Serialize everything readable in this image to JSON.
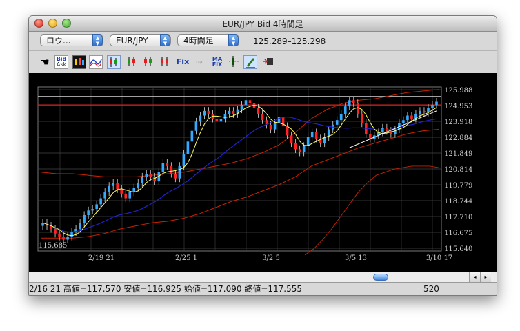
{
  "window": {
    "title": "EUR/JPY Bid 4時間足"
  },
  "toolbar": {
    "mode_select": "ロウ...",
    "pair_select": "EUR/JPY",
    "timeframe_select": "4時間足",
    "price_range": "125.289–125.298",
    "bid_ask_label_top": "Bid",
    "bid_ask_label_bottom": "Ask",
    "fix_label": "Fix",
    "ma_fix_label_top": "MA",
    "ma_fix_label_bottom": "FIX"
  },
  "chart_data": {
    "type": "candlestick",
    "pair": "EUR/JPY",
    "timeframe": "4時間足",
    "y_tick_labels": [
      "125.988",
      "124.953",
      "123.918",
      "122.884",
      "121.849",
      "120.814",
      "119.779",
      "118.744",
      "117.710",
      "116.675",
      "115.640"
    ],
    "ylim": [
      115.64,
      125.988
    ],
    "x_tick_labels": [
      "2/19 21",
      "2/25 1",
      "3/2 5",
      "3/5 13",
      "3/10 17"
    ],
    "low_label": "115.685",
    "horizontal_lines": [
      125.55,
      125.0
    ],
    "close_series": [
      117.3,
      117.1,
      116.9,
      116.6,
      116.4,
      116.2,
      116.4,
      116.7,
      116.9,
      117.3,
      117.8,
      118.1,
      118.2,
      118.5,
      118.9,
      119.3,
      119.7,
      119.9,
      119.5,
      119.2,
      118.9,
      119.3,
      119.6,
      119.9,
      120.3,
      120.5,
      120.3,
      120.0,
      120.6,
      121.2,
      121.0,
      120.5,
      120.2,
      121.0,
      121.8,
      122.6,
      123.3,
      123.9,
      124.3,
      124.6,
      124.4,
      124.1,
      123.9,
      124.1,
      124.4,
      124.6,
      124.4,
      124.7,
      125.0,
      125.3,
      125.1,
      124.8,
      124.4,
      124.0,
      123.7,
      123.4,
      123.8,
      124.2,
      123.6,
      123.0,
      122.5,
      122.1,
      121.9,
      122.3,
      122.9,
      123.2,
      122.8,
      122.5,
      122.9,
      123.4,
      123.7,
      124.0,
      124.4,
      124.9,
      125.3,
      125.1,
      124.4,
      123.8,
      123.1,
      122.8,
      123.0,
      123.2,
      123.5,
      123.3,
      123.1,
      123.4,
      123.8,
      124.0,
      124.3,
      124.1,
      124.4,
      124.6,
      124.5,
      124.8,
      125.0,
      125.2
    ],
    "bollinger_upper_series": [
      120.6,
      120.5,
      120.5,
      120.4,
      120.3,
      120.3,
      120.3,
      120.4,
      120.5,
      120.6,
      120.8,
      121.0,
      121.2,
      121.5,
      121.9,
      122.4,
      123.2,
      124.1,
      124.7,
      125.1,
      125.3,
      125.4,
      125.6,
      125.8,
      125.9,
      126.0
    ],
    "bollinger_lower_series": [
      116.3,
      116.3,
      116.3,
      116.4,
      116.6,
      116.9,
      117.1,
      117.3,
      117.4,
      117.6,
      117.9,
      118.3,
      118.7,
      119.0,
      119.4,
      119.8,
      120.3,
      121.0,
      121.4,
      121.8,
      122.2,
      122.5,
      122.8,
      123.1,
      123.3,
      123.4
    ],
    "slow_lower_band_series": [
      115.2,
      115.6,
      116.2,
      116.9,
      117.7,
      118.5,
      119.3,
      119.9,
      120.4,
      120.6,
      120.8,
      120.9,
      121.0,
      121.0,
      121.0,
      120.9
    ],
    "support_trendline": [
      [
        122.2
      ],
      [
        124.6
      ]
    ],
    "series_colors": {
      "close_ma": "#ffff66",
      "mid_ma": "#2222cc",
      "bands": "#cc2200",
      "up": "#33aaff",
      "down": "#ff2222"
    }
  },
  "scrollbar": {
    "left_arrow": "◂",
    "right_arrow": "▸"
  },
  "status": {
    "text": "2/16 21  高値=117.570  安値=116.925  始値=117.090  終値=117.555",
    "count": "520"
  },
  "colors": {
    "chart_bg": "#000000",
    "grid": "#444444",
    "axis_text": "#cccccc"
  }
}
